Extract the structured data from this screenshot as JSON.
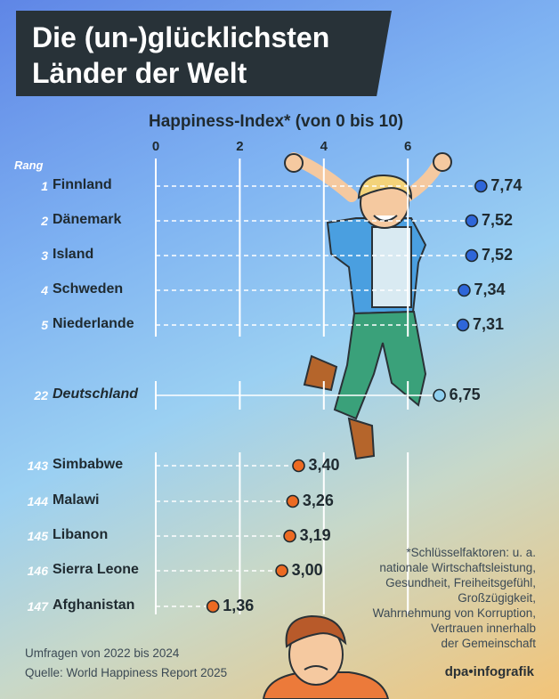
{
  "title": {
    "line1": "Die (un-)glücklichsten",
    "line2": "Länder der Welt"
  },
  "colors": {
    "top": "#2e66d9",
    "germany": "#8fd0f0",
    "bottom": "#ec6a22",
    "title_bg": "#283238"
  },
  "chart_data": {
    "type": "dot",
    "x_axis_title": "Happiness-Index* (von 0 bis 10)",
    "xlim": [
      0,
      10
    ],
    "x_ticks": [
      0,
      2,
      4,
      6
    ],
    "rank_header": "Rang",
    "rows": [
      {
        "rank": "1",
        "country": "Finnland",
        "value": 7.74,
        "label": "7,74",
        "group": "top"
      },
      {
        "rank": "2",
        "country": "Dänemark",
        "value": 7.52,
        "label": "7,52",
        "group": "top"
      },
      {
        "rank": "3",
        "country": "Island",
        "value": 7.52,
        "label": "7,52",
        "group": "top"
      },
      {
        "rank": "4",
        "country": "Schweden",
        "value": 7.34,
        "label": "7,34",
        "group": "top"
      },
      {
        "rank": "5",
        "country": "Niederlande",
        "value": 7.31,
        "label": "7,31",
        "group": "top"
      },
      {
        "rank": "22",
        "country": "Deutschland",
        "value": 6.75,
        "label": "6,75",
        "group": "germany"
      },
      {
        "rank": "143",
        "country": "Simbabwe",
        "value": 3.4,
        "label": "3,40",
        "group": "bottom"
      },
      {
        "rank": "144",
        "country": "Malawi",
        "value": 3.26,
        "label": "3,26",
        "group": "bottom"
      },
      {
        "rank": "145",
        "country": "Libanon",
        "value": 3.19,
        "label": "3,19",
        "group": "bottom"
      },
      {
        "rank": "146",
        "country": "Sierra Leone",
        "value": 3.0,
        "label": "3,00",
        "group": "bottom"
      },
      {
        "rank": "147",
        "country": "Afghanistan",
        "value": 1.36,
        "label": "1,36",
        "group": "bottom"
      }
    ]
  },
  "footnote": [
    "*Schlüsselfaktoren: u. a.",
    "nationale Wirtschaftsleistung,",
    "Gesundheit, Freiheitsgefühl,",
    "Großzügigkeit,",
    "Wahrnehmung von Korruption,",
    "Vertrauen innerhalb",
    "der Gemeinschaft"
  ],
  "source": {
    "period": "Umfragen von 2022 bis 2024",
    "source": "Quelle: World Happiness Report 2025"
  },
  "logo": {
    "part1": "dpa",
    "sep": "•",
    "part2": "infografik"
  }
}
